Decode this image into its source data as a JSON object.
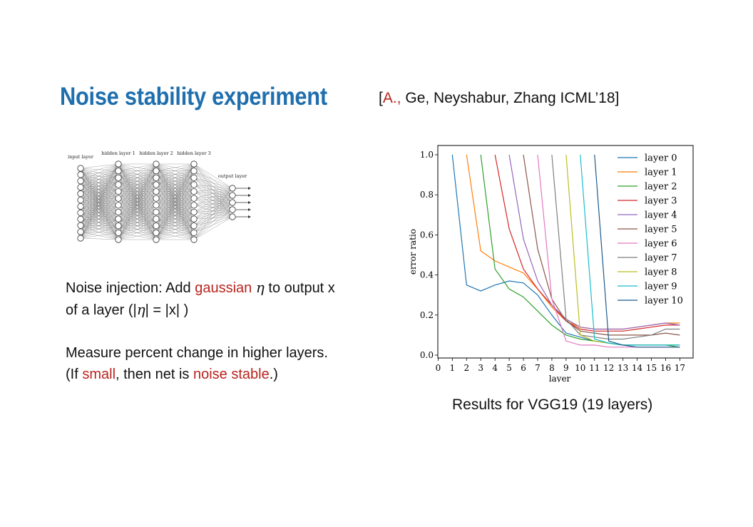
{
  "slide": {
    "title": "Noise stability experiment",
    "citation": {
      "open": "[",
      "author_highlight": "A.,",
      "rest": " Ge, Neyshabur,   Zhang ICML’18]"
    },
    "paragraph1": {
      "l1_a": "Noise injection: Add ",
      "l1_red": "gaussian",
      "eta": "η",
      "l1_b": " to output x",
      "l2_a": "of a layer (|",
      "l2_b": "| = |x| )"
    },
    "paragraph2": {
      "l1": "Measure percent change in higher layers.",
      "l2_a": "(If  ",
      "l2_red1": "small",
      "l2_b": ", then net is ",
      "l2_red2": "noise stable",
      "l2_c": ".)"
    },
    "caption": "Results for VGG19  (19 layers)"
  },
  "diagram": {
    "labels": [
      "input layer",
      "hidden layer 1",
      "hidden layer 2",
      "hidden layer 3",
      "output layer"
    ]
  },
  "chart_data": {
    "type": "line",
    "xlabel": "layer",
    "ylabel": "error ratio",
    "xlim": [
      0,
      17
    ],
    "ylim": [
      0,
      1.0
    ],
    "xticks": [
      0,
      1,
      2,
      3,
      4,
      5,
      6,
      7,
      8,
      9,
      10,
      11,
      12,
      13,
      14,
      15,
      16,
      17
    ],
    "yticks": [
      0.0,
      0.2,
      0.4,
      0.6,
      0.8,
      1.0
    ],
    "ytick_labels": [
      "0.0",
      "0.2",
      "0.4",
      "0.6",
      "0.8",
      "1.0"
    ],
    "legend_position": "top-right",
    "series": [
      {
        "name": "layer 0",
        "color": "#1f77b4",
        "x": [
          1,
          2,
          3,
          4,
          5,
          6,
          7,
          8,
          9,
          10,
          11,
          12,
          13,
          14,
          15,
          16,
          17
        ],
        "y": [
          1.0,
          0.35,
          0.32,
          0.35,
          0.37,
          0.36,
          0.3,
          0.2,
          0.11,
          0.09,
          0.07,
          0.06,
          0.05,
          0.05,
          0.05,
          0.05,
          0.05
        ]
      },
      {
        "name": "layer 1",
        "color": "#ff7f0e",
        "x": [
          2,
          3,
          4,
          5,
          6,
          7,
          8,
          9,
          10,
          11,
          12,
          13,
          14,
          15,
          16,
          17
        ],
        "y": [
          1.0,
          0.52,
          0.47,
          0.44,
          0.41,
          0.33,
          0.24,
          0.17,
          0.14,
          0.13,
          0.13,
          0.13,
          0.14,
          0.15,
          0.16,
          0.16
        ]
      },
      {
        "name": "layer 2",
        "color": "#2ca02c",
        "x": [
          3,
          4,
          5,
          6,
          7,
          8,
          9,
          10,
          11,
          12,
          13,
          14,
          15,
          16,
          17
        ],
        "y": [
          1.0,
          0.43,
          0.33,
          0.29,
          0.22,
          0.15,
          0.1,
          0.08,
          0.07,
          0.06,
          0.05,
          0.05,
          0.05,
          0.05,
          0.04
        ]
      },
      {
        "name": "layer 3",
        "color": "#d62728",
        "x": [
          4,
          5,
          6,
          7,
          8,
          9,
          10,
          11,
          12,
          13,
          14,
          15,
          16,
          17
        ],
        "y": [
          1.0,
          0.63,
          0.43,
          0.33,
          0.25,
          0.17,
          0.13,
          0.12,
          0.12,
          0.12,
          0.13,
          0.14,
          0.15,
          0.15
        ]
      },
      {
        "name": "layer 4",
        "color": "#9467bd",
        "x": [
          5,
          6,
          7,
          8,
          9,
          10,
          11,
          12,
          13,
          14,
          15,
          16,
          17
        ],
        "y": [
          1.0,
          0.58,
          0.37,
          0.25,
          0.18,
          0.14,
          0.13,
          0.13,
          0.13,
          0.14,
          0.15,
          0.16,
          0.15
        ]
      },
      {
        "name": "layer 5",
        "color": "#8c564b",
        "x": [
          6,
          7,
          8,
          9,
          10,
          11,
          12,
          13,
          14,
          15,
          16,
          17
        ],
        "y": [
          1.0,
          0.53,
          0.28,
          0.17,
          0.12,
          0.11,
          0.1,
          0.1,
          0.1,
          0.1,
          0.11,
          0.1
        ]
      },
      {
        "name": "layer 6",
        "color": "#e377c2",
        "x": [
          7,
          8,
          9,
          10,
          11,
          12,
          13,
          14,
          15,
          16,
          17
        ],
        "y": [
          1.0,
          0.28,
          0.07,
          0.05,
          0.05,
          0.04,
          0.04,
          0.04,
          0.04,
          0.04,
          0.04
        ]
      },
      {
        "name": "layer 7",
        "color": "#7f7f7f",
        "x": [
          8,
          9,
          10,
          11,
          12,
          13,
          14,
          15,
          16,
          17
        ],
        "y": [
          1.0,
          0.18,
          0.1,
          0.09,
          0.08,
          0.08,
          0.09,
          0.1,
          0.13,
          0.13
        ]
      },
      {
        "name": "layer 8",
        "color": "#bcbd22",
        "x": [
          9,
          10,
          11,
          12,
          13,
          14,
          15,
          16,
          17
        ],
        "y": [
          1.0,
          0.1,
          0.07,
          0.06,
          0.05,
          0.05,
          0.05,
          0.05,
          0.05
        ]
      },
      {
        "name": "layer 9",
        "color": "#17becf",
        "x": [
          10,
          11,
          12,
          13,
          14,
          15,
          16,
          17
        ],
        "y": [
          1.0,
          0.08,
          0.06,
          0.05,
          0.05,
          0.05,
          0.05,
          0.05
        ]
      },
      {
        "name": "layer 10",
        "color": "#1f5a8c",
        "x": [
          11,
          12,
          13,
          14,
          15,
          16,
          17
        ],
        "y": [
          1.0,
          0.07,
          0.05,
          0.04,
          0.04,
          0.04,
          0.04
        ]
      }
    ]
  }
}
